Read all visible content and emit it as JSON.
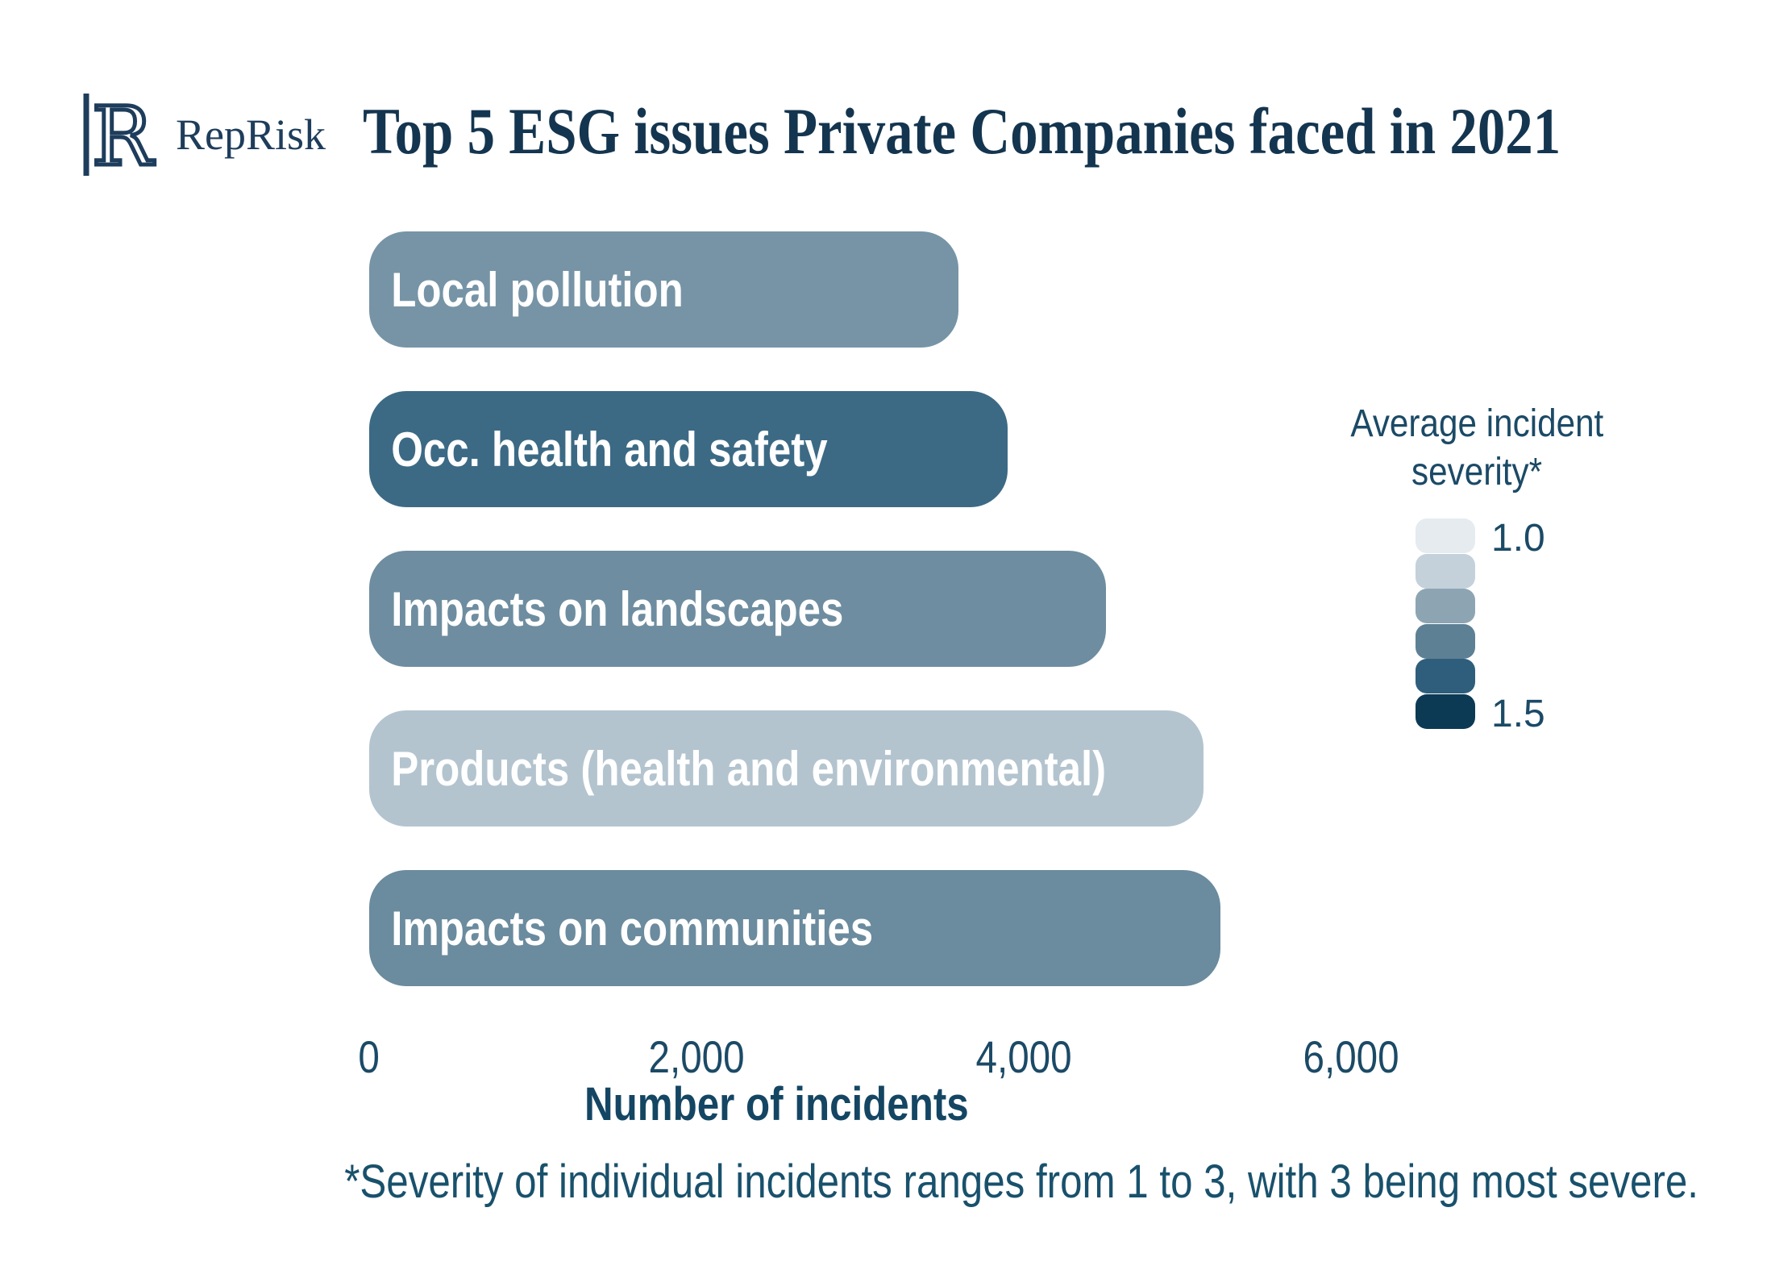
{
  "logo": {
    "brand": "RepRisk"
  },
  "title": "Top 5 ESG issues Private Companies faced in 2021",
  "chart_data": {
    "type": "bar",
    "orientation": "horizontal",
    "title": "Top 5 ESG issues Private Companies faced in 2021",
    "categories": [
      "Local pollution",
      "Occ. health and safety",
      "Impacts on landscapes",
      "Products (health and environmental)",
      "Impacts on communities"
    ],
    "values": [
      3600,
      3900,
      4500,
      5100,
      5200
    ],
    "bar_colors": [
      "#7694a6",
      "#3c6a85",
      "#6e8da0",
      "#b3c4cf",
      "#6b8b9e"
    ],
    "xlabel": "Number of incidents",
    "ylabel": "",
    "xlim": [
      0,
      6000
    ],
    "grid": false,
    "x_ticks": {
      "values": [
        0,
        2000,
        4000,
        6000
      ],
      "labels": [
        "0",
        "2,000",
        "4,000",
        "6,000"
      ]
    },
    "legend": {
      "position": "right",
      "title_line1": "Average incident",
      "title_line2": "severity*",
      "scale_colors": [
        "#e5ebef",
        "#c4d1da",
        "#8da5b3",
        "#5e8095",
        "#2e5e7b",
        "#0c3a55"
      ],
      "min_label": "1.0",
      "max_label": "1.5"
    }
  },
  "footnote": "*Severity of individual incidents ranges from 1 to 3, with 3 being most severe."
}
